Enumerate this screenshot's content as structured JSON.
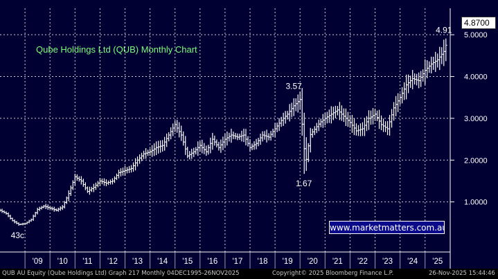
{
  "chart_data": {
    "type": "bar",
    "subtype": "ohlc-monthly",
    "title": "Qube Holdings Ltd (QUB) Monthly Chart",
    "ylim": [
      0,
      5.5
    ],
    "yticks": [
      1,
      2,
      3,
      4,
      5
    ],
    "ytick_labels": [
      "1.0000",
      "2.0000",
      "3.0000",
      "4.0000",
      "5.0000"
    ],
    "xticks": [
      {
        "label": "'09",
        "year": 2009
      },
      {
        "label": "'10",
        "year": 2010
      },
      {
        "label": "'11",
        "year": 2011
      },
      {
        "label": "'12",
        "year": 2012
      },
      {
        "label": "'13",
        "year": 2013
      },
      {
        "label": "'14",
        "year": 2014
      },
      {
        "label": "'15",
        "year": 2015
      },
      {
        "label": "'16",
        "year": 2016
      },
      {
        "label": "'17",
        "year": 2017
      },
      {
        "label": "'18",
        "year": 2018
      },
      {
        "label": "'19",
        "year": 2019
      },
      {
        "label": "'20",
        "year": 2020
      },
      {
        "label": "'21",
        "year": 2021
      },
      {
        "label": "'22",
        "year": 2022
      },
      {
        "label": "'23",
        "year": 2023
      },
      {
        "label": "'24",
        "year": 2024
      },
      {
        "label": "'25",
        "year": 2025
      }
    ],
    "x_range": [
      2008.0,
      2025.95
    ],
    "series": [
      {
        "color": "#ffffff",
        "points": [
          [
            2008.0,
            0.8
          ],
          [
            2008.25,
            0.72
          ],
          [
            2008.5,
            0.55
          ],
          [
            2008.75,
            0.46
          ],
          [
            2009.0,
            0.48
          ],
          [
            2009.25,
            0.58
          ],
          [
            2009.5,
            0.82
          ],
          [
            2009.75,
            0.9
          ],
          [
            2010.0,
            0.85
          ],
          [
            2010.25,
            0.8
          ],
          [
            2010.5,
            0.88
          ],
          [
            2010.75,
            1.2
          ],
          [
            2011.0,
            1.6
          ],
          [
            2011.25,
            1.5
          ],
          [
            2011.5,
            1.25
          ],
          [
            2011.75,
            1.35
          ],
          [
            2012.0,
            1.5
          ],
          [
            2012.25,
            1.45
          ],
          [
            2012.5,
            1.5
          ],
          [
            2012.75,
            1.7
          ],
          [
            2013.0,
            1.75
          ],
          [
            2013.25,
            1.8
          ],
          [
            2013.5,
            2.0
          ],
          [
            2013.75,
            2.15
          ],
          [
            2014.0,
            2.2
          ],
          [
            2014.25,
            2.3
          ],
          [
            2014.5,
            2.35
          ],
          [
            2014.75,
            2.6
          ],
          [
            2015.0,
            2.85
          ],
          [
            2015.25,
            2.6
          ],
          [
            2015.5,
            2.1
          ],
          [
            2015.75,
            2.2
          ],
          [
            2016.0,
            2.35
          ],
          [
            2016.25,
            2.2
          ],
          [
            2016.5,
            2.5
          ],
          [
            2016.75,
            2.3
          ],
          [
            2017.0,
            2.5
          ],
          [
            2017.25,
            2.6
          ],
          [
            2017.5,
            2.55
          ],
          [
            2017.75,
            2.6
          ],
          [
            2018.0,
            2.3
          ],
          [
            2018.25,
            2.4
          ],
          [
            2018.5,
            2.6
          ],
          [
            2018.75,
            2.55
          ],
          [
            2019.0,
            2.75
          ],
          [
            2019.25,
            2.95
          ],
          [
            2019.5,
            3.1
          ],
          [
            2019.75,
            3.3
          ],
          [
            2020.0,
            3.45
          ],
          [
            2020.12,
            2.6
          ],
          [
            2020.22,
            1.9
          ],
          [
            2020.4,
            2.6
          ],
          [
            2020.6,
            2.75
          ],
          [
            2020.8,
            2.9
          ],
          [
            2021.0,
            3.0
          ],
          [
            2021.25,
            3.1
          ],
          [
            2021.5,
            3.2
          ],
          [
            2021.75,
            3.05
          ],
          [
            2022.0,
            2.9
          ],
          [
            2022.25,
            2.7
          ],
          [
            2022.5,
            2.75
          ],
          [
            2022.75,
            3.0
          ],
          [
            2023.0,
            3.1
          ],
          [
            2023.25,
            2.85
          ],
          [
            2023.5,
            2.75
          ],
          [
            2023.75,
            3.25
          ],
          [
            2024.0,
            3.5
          ],
          [
            2024.25,
            3.8
          ],
          [
            2024.5,
            3.95
          ],
          [
            2024.75,
            3.9
          ],
          [
            2025.0,
            4.15
          ],
          [
            2025.25,
            4.3
          ],
          [
            2025.5,
            4.4
          ],
          [
            2025.75,
            4.6
          ],
          [
            2025.9,
            4.87
          ]
        ]
      }
    ],
    "annotations": [
      {
        "text": "43c",
        "x": 2008.7,
        "y": 0.43,
        "pos": "below"
      },
      {
        "text": "3.57",
        "x": 2019.75,
        "y": 3.57,
        "pos": "above"
      },
      {
        "text": "1.67",
        "x": 2020.15,
        "y": 1.67,
        "pos": "below"
      },
      {
        "text": "4.91",
        "x": 2025.75,
        "y": 4.91,
        "pos": "above"
      }
    ],
    "last_price": "4.8700",
    "grid": true,
    "legend": "none"
  },
  "watermark": "www.marketmatters.com.au",
  "footer": {
    "left": "QUB AU Equity (Qube Holdings Ltd) Graph 217 Monthly 04DEC1995-26NOV2025",
    "center": "Copyright© 2025 Bloomberg Finance L.P.",
    "right": "26-Nov-2025 15:44:46"
  },
  "colors": {
    "background": "#000033",
    "bars": "#ffffff",
    "title": "#7cfc7c",
    "grid": "#ffffff",
    "watermark_bg": "#0a0a8a"
  }
}
